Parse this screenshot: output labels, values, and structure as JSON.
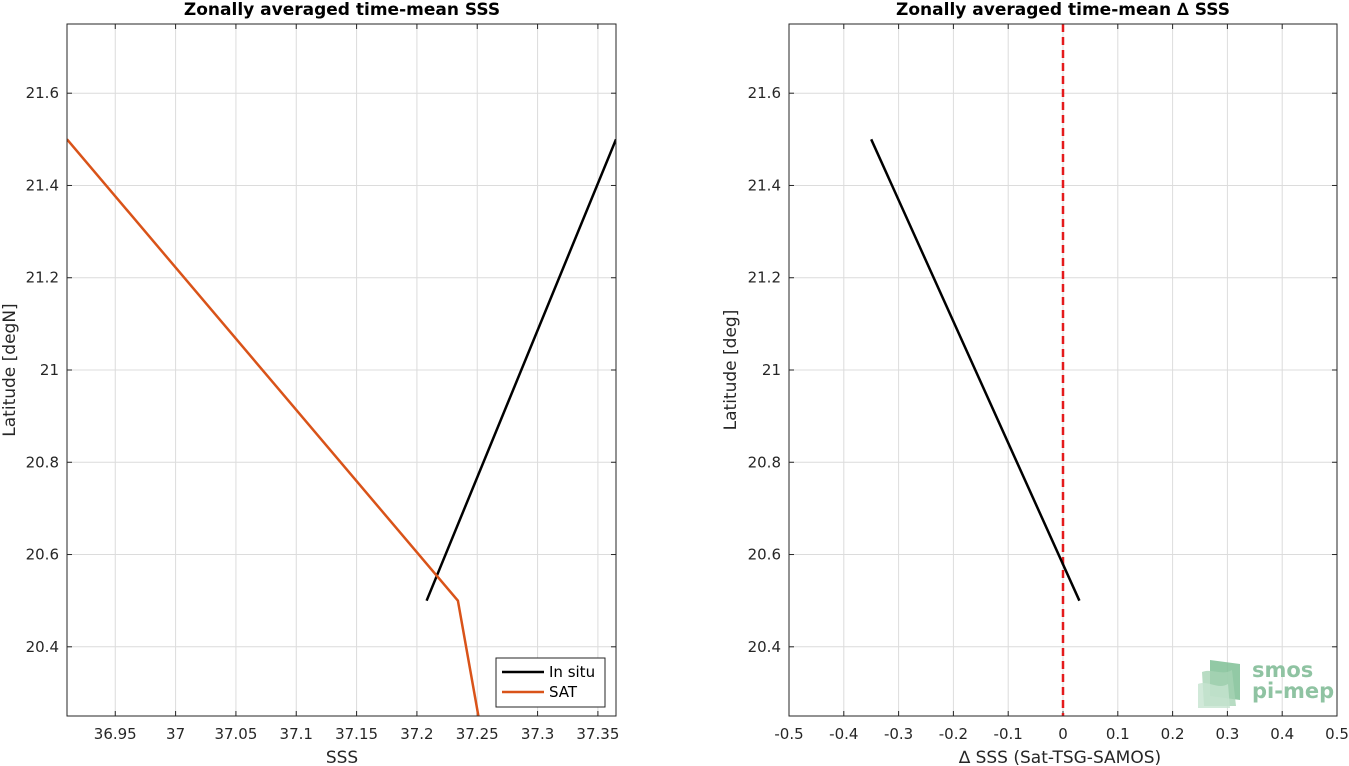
{
  "chart_data": [
    {
      "type": "line",
      "title": "Zonally averaged time-mean SSS",
      "xlabel": "SSS",
      "ylabel": "Latitude [degN]",
      "xlim": [
        36.91,
        37.365
      ],
      "ylim": [
        20.25,
        21.75
      ],
      "xticks": [
        36.95,
        37,
        37.05,
        37.1,
        37.15,
        37.2,
        37.25,
        37.3,
        37.35
      ],
      "xtick_labels": [
        "36.95",
        "37",
        "37.05",
        "37.1",
        "37.15",
        "37.2",
        "37.25",
        "37.3",
        "37.35"
      ],
      "yticks": [
        20.4,
        20.6,
        20.8,
        21,
        21.2,
        21.4,
        21.6
      ],
      "ytick_labels": [
        "20.4",
        "20.6",
        "20.8",
        "21",
        "21.2",
        "21.4",
        "21.6"
      ],
      "grid": true,
      "legend_position": "bottom-right",
      "series": [
        {
          "name": "In situ",
          "color": "#000000",
          "x": [
            37.208,
            37.365
          ],
          "y": [
            20.5,
            21.5
          ]
        },
        {
          "name": "SAT",
          "color": "#d95319",
          "x": [
            36.91,
            37.234,
            37.251
          ],
          "y": [
            21.5,
            20.5,
            20.25
          ]
        }
      ]
    },
    {
      "type": "line",
      "title": "Zonally averaged time-mean ∆ SSS",
      "xlabel": "∆ SSS (Sat-TSG-SAMOS)",
      "ylabel": "Latitude [deg]",
      "xlim": [
        -0.5,
        0.5
      ],
      "ylim": [
        20.25,
        21.75
      ],
      "xticks": [
        -0.5,
        -0.4,
        -0.3,
        -0.2,
        -0.1,
        0,
        0.1,
        0.2,
        0.3,
        0.4,
        0.5
      ],
      "xtick_labels": [
        "-0.5",
        "-0.4",
        "-0.3",
        "-0.2",
        "-0.1",
        "0",
        "0.1",
        "0.2",
        "0.3",
        "0.4",
        "0.5"
      ],
      "yticks": [
        20.4,
        20.6,
        20.8,
        21,
        21.2,
        21.4,
        21.6
      ],
      "ytick_labels": [
        "20.4",
        "20.6",
        "20.8",
        "21",
        "21.2",
        "21.4",
        "21.6"
      ],
      "grid": true,
      "reference_line": {
        "x": 0,
        "color": "#e41a1c",
        "style": "dashed"
      },
      "series": [
        {
          "color": "#000000",
          "x": [
            -0.35,
            0.03
          ],
          "y": [
            21.5,
            20.5
          ]
        }
      ]
    }
  ],
  "logo": {
    "line1": "smos",
    "line2": "pi-mep",
    "color": "#8fc3a2"
  }
}
